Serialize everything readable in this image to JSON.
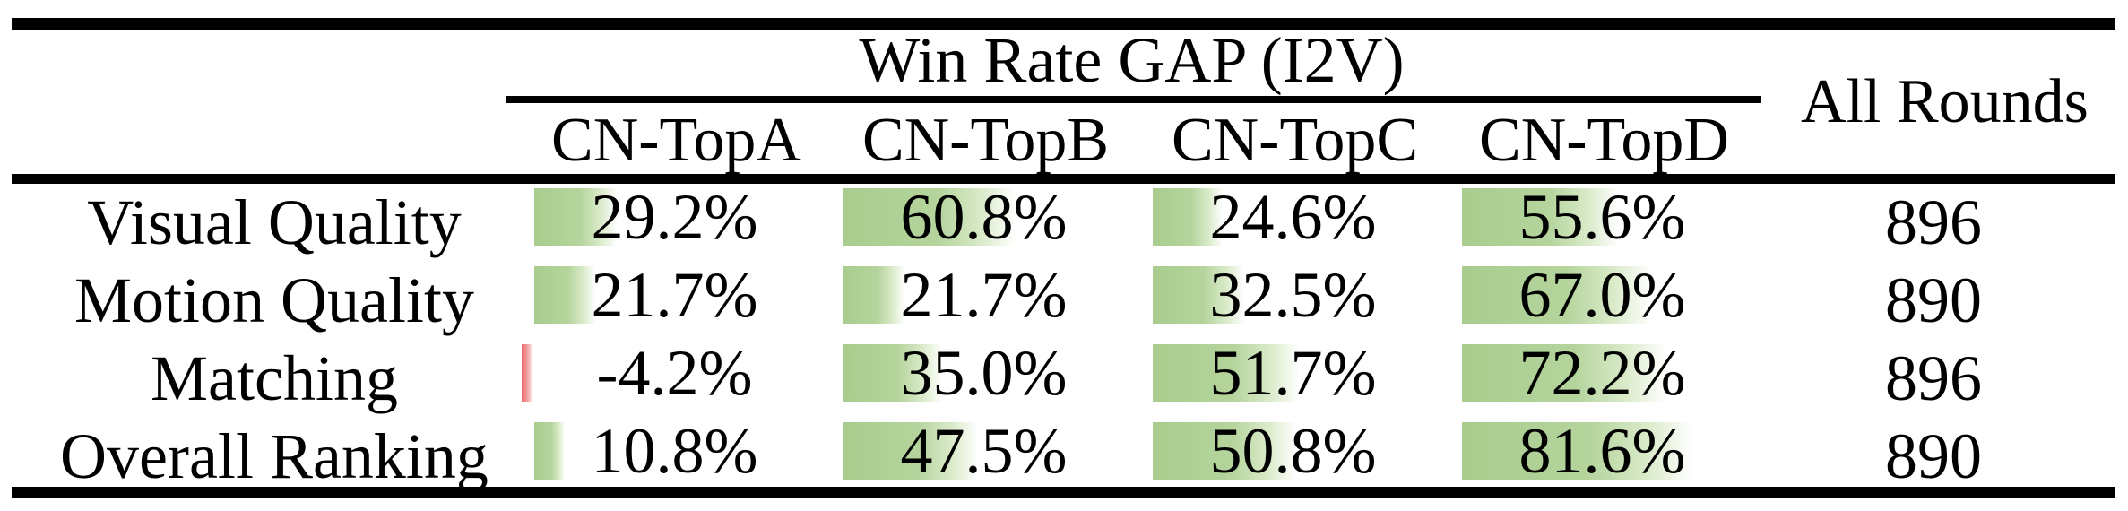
{
  "table": {
    "title": "Win Rate GAP (I2V)",
    "all_rounds_header": "All Rounds",
    "columns": [
      "CN-TopA",
      "CN-TopB",
      "CN-TopC",
      "CN-TopD"
    ],
    "rows": [
      {
        "label": "Visual Quality",
        "values": [
          29.2,
          60.8,
          24.6,
          55.6
        ],
        "display": [
          "29.2%",
          "60.8%",
          "24.6%",
          "55.6%"
        ],
        "all_rounds": "896"
      },
      {
        "label": "Motion Quality",
        "values": [
          21.7,
          21.7,
          32.5,
          67.0
        ],
        "display": [
          "21.7%",
          "21.7%",
          "32.5%",
          "67.0%"
        ],
        "all_rounds": "890"
      },
      {
        "label": "Matching",
        "values": [
          -4.2,
          35.0,
          51.7,
          72.2
        ],
        "display": [
          "-4.2%",
          "35.0%",
          "51.7%",
          "72.2%"
        ],
        "all_rounds": "896"
      },
      {
        "label": "Overall Ranking",
        "values": [
          10.8,
          47.5,
          50.8,
          81.6
        ],
        "display": [
          "10.8%",
          "47.5%",
          "50.8%",
          "81.6%"
        ],
        "all_rounds": "890"
      }
    ]
  },
  "chart_data": {
    "type": "table",
    "title": "Win Rate GAP (I2V)",
    "row_header": [
      "Visual Quality",
      "Motion Quality",
      "Matching",
      "Overall Ranking"
    ],
    "columns": [
      "CN-TopA",
      "CN-TopB",
      "CN-TopC",
      "CN-TopD",
      "All Rounds"
    ],
    "win_rate_gap_percent": [
      [
        29.2,
        60.8,
        24.6,
        55.6
      ],
      [
        21.7,
        21.7,
        32.5,
        67.0
      ],
      [
        -4.2,
        35.0,
        51.7,
        72.2
      ],
      [
        10.8,
        47.5,
        50.8,
        81.6
      ]
    ],
    "all_rounds": [
      896,
      890,
      896,
      890
    ],
    "bar_style": "in-cell horizontal data bars, length proportional to value, gradient fading right",
    "bar_color_positive": "#a9cc8e",
    "bar_color_negative": "#e96868",
    "rule_color": "#000000",
    "background": "#ffffff"
  }
}
